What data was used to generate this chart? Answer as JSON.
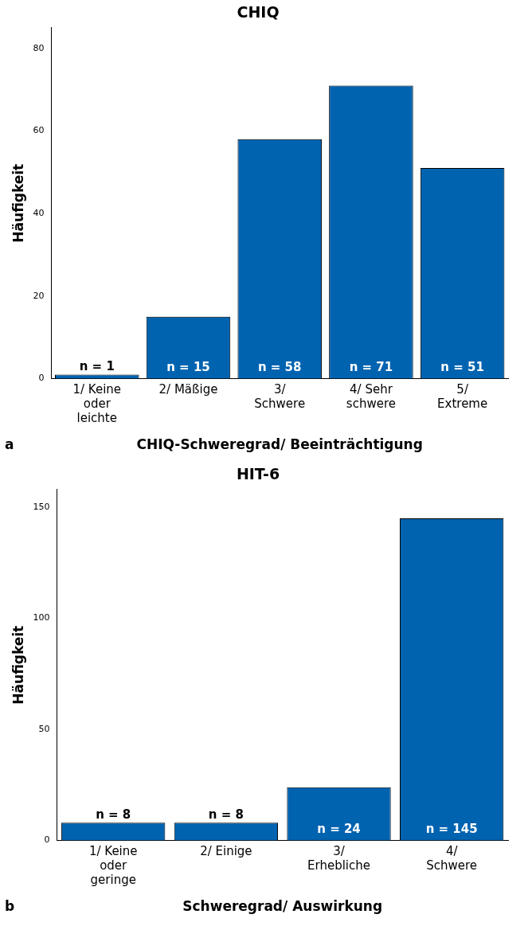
{
  "chart_data": [
    {
      "type": "bar",
      "title": "CHIQ",
      "xlabel": "CHIQ-Schweregrad/ Beeinträchtigung",
      "ylabel": "Häufigkeit",
      "categories": [
        "1/ Keine oder leichte",
        "2/ Mäßige",
        "3/ Schwere",
        "4/ Sehr schwere",
        "5/ Extreme"
      ],
      "values": [
        1,
        15,
        58,
        71,
        51
      ],
      "color": "#0063b0",
      "value_labels": [
        "n = 1",
        "n = 15",
        "n = 58",
        "n = 71",
        "n = 51"
      ],
      "ylim": [
        0,
        85
      ],
      "yticks": [
        0,
        20,
        40,
        60,
        80
      ],
      "grid": false,
      "legend": false,
      "annotations": [
        "a"
      ]
    },
    {
      "type": "bar",
      "title": "HIT-6",
      "xlabel": "Schweregrad/ Auswirkung",
      "ylabel": "Häufigkeit",
      "categories": [
        "1/ Keine oder geringe",
        "2/ Einige",
        "3/ Erhebliche",
        "4/ Schwere"
      ],
      "values": [
        8,
        8,
        24,
        145
      ],
      "color": "#0063b0",
      "value_labels": [
        "n = 8",
        "n = 8",
        "n = 24",
        "n = 145"
      ],
      "ylim": [
        0,
        158
      ],
      "yticks": [
        0,
        50,
        100,
        150
      ],
      "grid": false,
      "legend": false,
      "annotations": [
        "b"
      ]
    }
  ]
}
